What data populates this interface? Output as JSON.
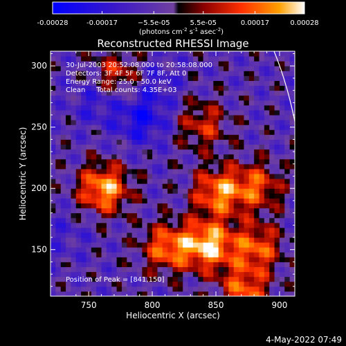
{
  "chart_data": {
    "type": "heatmap",
    "title": "Reconstructed RHESSI Image",
    "xlabel": "Heliocentric X (arcsec)",
    "ylabel": "Heliocentric Y (arcsec)",
    "xlim": [
      720,
      912
    ],
    "ylim": [
      112,
      312
    ],
    "x_ticks": [
      750,
      800,
      850,
      900
    ],
    "y_ticks": [
      150,
      200,
      250,
      300
    ],
    "colorbar": {
      "label_base": "(photons cm",
      "label_exp1": "-2",
      "label_mid": " s",
      "label_exp2": "-1",
      "label_end": " asec",
      "label_exp3": "-2",
      "label_close": ")",
      "range": [
        -0.00028,
        0.00028
      ],
      "tick_values": [
        -0.00028,
        -0.00017,
        -5.5e-05,
        5.5e-05,
        0.00017,
        0.00028
      ],
      "tick_labels": [
        "-0.00028",
        "-0.00017",
        "−5.5e-05",
        "5.5e-05",
        "0.00017",
        "0.00028"
      ]
    },
    "info": [
      "30-Jul-2003 20:52:08.000 to 20:58:08.000",
      "Detectors: 3F 4F 5F 6F 7F 8F, Att 0",
      "Energy Range: 25.0 - 50.0 keV",
      "Clean     Total counts: 4.35E+03"
    ],
    "peak_label": "Position of Peak = [841,150]",
    "peak": [
      841,
      150
    ],
    "bright_regions": [
      {
        "x": 760,
        "y": 198,
        "level": 0.00026
      },
      {
        "x": 842,
        "y": 152,
        "level": 0.00028
      },
      {
        "x": 850,
        "y": 195,
        "level": 0.00022
      },
      {
        "x": 810,
        "y": 150,
        "level": 0.0002
      },
      {
        "x": 880,
        "y": 150,
        "level": 0.00018
      },
      {
        "x": 880,
        "y": 200,
        "level": 0.00016
      },
      {
        "x": 870,
        "y": 115,
        "level": 0.00018
      },
      {
        "x": 838,
        "y": 250,
        "level": 0.00012
      },
      {
        "x": 770,
        "y": 290,
        "level": 0.00014
      }
    ],
    "dark_regions": [
      {
        "x": 790,
        "y": 255,
        "level": -0.00024
      },
      {
        "x": 755,
        "y": 270,
        "level": -0.00018
      },
      {
        "x": 800,
        "y": 285,
        "level": -0.00015
      },
      {
        "x": 730,
        "y": 160,
        "level": -0.00012
      }
    ]
  },
  "footer": {
    "date": "4-May-2022 07:49"
  }
}
